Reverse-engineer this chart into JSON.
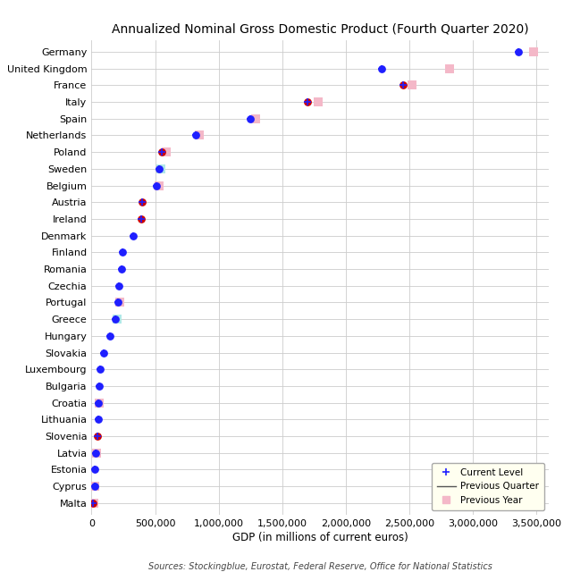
{
  "title": "Annualized Nominal Gross Domestic Product (Fourth Quarter 2020)",
  "xlabel": "GDP (in millions of current euros)",
  "source": "Sources: Stockingblue, Eurostat, Federal Reserve, Office for National Statistics",
  "countries": [
    "Germany",
    "United Kingdom",
    "France",
    "Italy",
    "Spain",
    "Netherlands",
    "Poland",
    "Sweden",
    "Belgium",
    "Austria",
    "Ireland",
    "Denmark",
    "Finland",
    "Romania",
    "Czechia",
    "Portugal",
    "Greece",
    "Hungary",
    "Slovakia",
    "Luxembourg",
    "Bulgaria",
    "Croatia",
    "Lithuania",
    "Slovenia",
    "Latvia",
    "Estonia",
    "Cyprus",
    "Malta"
  ],
  "current_level": [
    3360000,
    2280000,
    2450000,
    1700000,
    1250000,
    820000,
    555000,
    530000,
    510000,
    400000,
    390000,
    330000,
    240000,
    235000,
    215000,
    205000,
    185000,
    145000,
    95000,
    70000,
    60000,
    55000,
    52000,
    48000,
    32000,
    27000,
    22000,
    14000
  ],
  "previous_quarter": [
    3360000,
    2290000,
    2460000,
    1710000,
    1255000,
    822000,
    557000,
    532000,
    512000,
    405000,
    395000,
    332000,
    242000,
    237000,
    217000,
    207000,
    187000,
    147000,
    97000,
    72000,
    62000,
    57000,
    54000,
    50000,
    34000,
    29000,
    24000,
    16000
  ],
  "previous_year": [
    3480000,
    2820000,
    2520000,
    1780000,
    1290000,
    845000,
    590000,
    543000,
    530000,
    425000,
    410000,
    348000,
    255000,
    252000,
    228000,
    220000,
    198000,
    158000,
    108000,
    77000,
    68000,
    62000,
    58000,
    53000,
    37000,
    32000,
    28000,
    18000
  ],
  "current_is_red": [
    false,
    false,
    true,
    true,
    false,
    false,
    true,
    false,
    false,
    true,
    true,
    false,
    false,
    false,
    false,
    false,
    false,
    false,
    false,
    false,
    false,
    false,
    false,
    true,
    false,
    false,
    false,
    true
  ],
  "square_is_cyan": [
    false,
    false,
    false,
    false,
    false,
    false,
    false,
    true,
    false,
    false,
    false,
    false,
    false,
    false,
    false,
    false,
    true,
    false,
    false,
    false,
    false,
    false,
    false,
    false,
    false,
    false,
    false,
    false
  ],
  "show_square": [
    true,
    true,
    true,
    true,
    true,
    true,
    true,
    true,
    true,
    false,
    false,
    false,
    false,
    false,
    false,
    true,
    true,
    false,
    false,
    false,
    false,
    true,
    false,
    false,
    true,
    false,
    true,
    true
  ],
  "dot_blue": "#1f1fff",
  "dot_red": "#cc0000",
  "sq_pink": "#f4b8c8",
  "sq_cyan": "#b0e8e8",
  "bg_color": "#ffffff",
  "grid_color": "#cccccc",
  "legend_bg": "#fffff0",
  "xlim": [
    0,
    3600000
  ],
  "xticks": [
    0,
    500000,
    1000000,
    1500000,
    2000000,
    2500000,
    3000000,
    3500000
  ],
  "xtick_labels": [
    "0",
    "500,000",
    "1,000,000",
    "1,500,000",
    "2,000,000",
    "2,500,000",
    "3,000,000",
    "3,500,000"
  ],
  "title_fontsize": 10,
  "label_fontsize": 8.5,
  "tick_fontsize": 8,
  "source_fontsize": 7,
  "legend_fontsize": 7.5
}
